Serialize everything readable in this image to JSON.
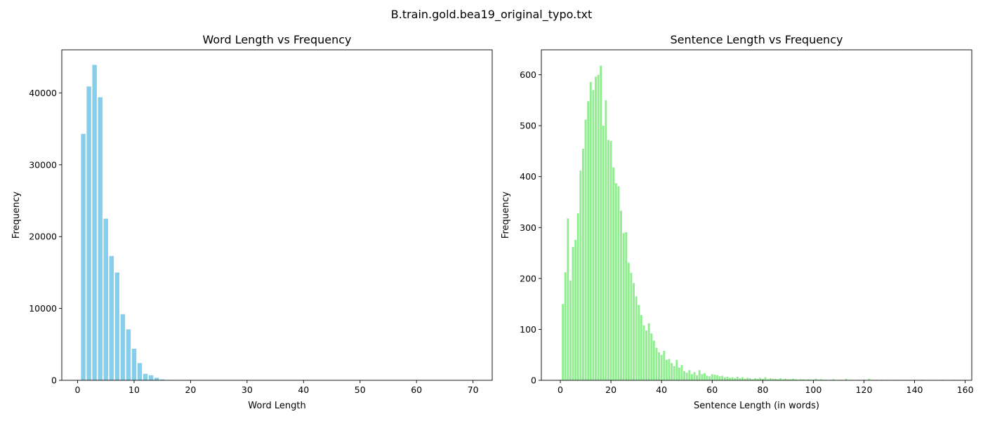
{
  "figure": {
    "suptitle": "B.train.gold.bea19_original_typo.txt"
  },
  "chart_data": [
    {
      "type": "bar",
      "title": "Word Length vs Frequency",
      "xlabel": "Word Length",
      "ylabel": "Frequency",
      "color": "#87ceeb",
      "xlim": [
        -2.8,
        73.4
      ],
      "ylim": [
        0,
        46000
      ],
      "xticks": [
        0,
        10,
        20,
        30,
        40,
        50,
        60,
        70
      ],
      "yticks": [
        0,
        10000,
        20000,
        30000,
        40000
      ],
      "bar_width": 0.8,
      "x": [
        1,
        2,
        3,
        4,
        5,
        6,
        7,
        8,
        9,
        10,
        11,
        12,
        13,
        14,
        15,
        16,
        17,
        18,
        19,
        20,
        21,
        22,
        23,
        24,
        25,
        26,
        27,
        28,
        29,
        30,
        31,
        32,
        33,
        34,
        35,
        36,
        37,
        38,
        39,
        40,
        41,
        42,
        43,
        44,
        45,
        46,
        47,
        48,
        49,
        50,
        51,
        52,
        53,
        54,
        55,
        56,
        57,
        58,
        59,
        60,
        61,
        62,
        63,
        64,
        65,
        66,
        67,
        68,
        69,
        70
      ],
      "values": [
        34300,
        40900,
        43900,
        39400,
        22500,
        17300,
        15000,
        9200,
        7100,
        4400,
        2400,
        900,
        700,
        350,
        120,
        50,
        25,
        10,
        5,
        3,
        2,
        2,
        1,
        1,
        1,
        1,
        1,
        0,
        1,
        0,
        0,
        0,
        0,
        0,
        0,
        0,
        0,
        0,
        0,
        0,
        0,
        0,
        0,
        0,
        0,
        0,
        0,
        0,
        0,
        0,
        0,
        0,
        0,
        0,
        0,
        0,
        0,
        0,
        0,
        0,
        0,
        0,
        0,
        0,
        0,
        0,
        0,
        0,
        0,
        1
      ]
    },
    {
      "type": "bar",
      "title": "Sentence Length vs Frequency",
      "xlabel": "Sentence Length (in words)",
      "ylabel": "Frequency",
      "color": "#90ee90",
      "xlim": [
        -7.5,
        162.6
      ],
      "ylim": [
        0,
        649
      ],
      "xticks": [
        0,
        20,
        40,
        60,
        80,
        100,
        120,
        140,
        160
      ],
      "yticks": [
        0,
        100,
        200,
        300,
        400,
        500,
        600
      ],
      "bar_width": 0.8,
      "x": [
        1,
        2,
        3,
        4,
        5,
        6,
        7,
        8,
        9,
        10,
        11,
        12,
        13,
        14,
        15,
        16,
        17,
        18,
        19,
        20,
        21,
        22,
        23,
        24,
        25,
        26,
        27,
        28,
        29,
        30,
        31,
        32,
        33,
        34,
        35,
        36,
        37,
        38,
        39,
        40,
        41,
        42,
        43,
        44,
        45,
        46,
        47,
        48,
        49,
        50,
        51,
        52,
        53,
        54,
        55,
        56,
        57,
        58,
        59,
        60,
        61,
        62,
        63,
        64,
        65,
        66,
        67,
        68,
        69,
        70,
        71,
        72,
        73,
        74,
        75,
        76,
        77,
        78,
        79,
        80,
        81,
        82,
        83,
        84,
        85,
        86,
        87,
        88,
        89,
        90,
        91,
        92,
        93,
        94,
        95,
        96,
        97,
        98,
        99,
        100,
        101,
        102,
        103,
        104,
        105,
        106,
        107,
        108,
        109,
        110,
        111,
        112,
        113,
        114,
        115,
        116,
        117,
        118,
        119,
        120,
        121,
        122,
        123,
        124,
        125,
        126,
        127,
        128,
        129,
        130,
        131,
        132,
        133,
        134,
        135,
        136,
        137,
        138,
        139,
        140,
        141,
        142,
        143,
        144,
        145,
        146,
        147,
        148,
        149,
        150,
        151,
        152,
        153,
        154,
        155,
        156
      ],
      "values": [
        150,
        212,
        318,
        196,
        262,
        276,
        328,
        412,
        455,
        512,
        548,
        586,
        570,
        596,
        600,
        618,
        500,
        550,
        472,
        470,
        418,
        387,
        381,
        333,
        289,
        291,
        231,
        211,
        191,
        165,
        148,
        128,
        108,
        98,
        112,
        92,
        78,
        64,
        55,
        50,
        58,
        40,
        42,
        34,
        28,
        40,
        25,
        30,
        18,
        15,
        20,
        12,
        16,
        10,
        20,
        12,
        14,
        9,
        8,
        12,
        11,
        10,
        8,
        9,
        6,
        7,
        5,
        6,
        4,
        7,
        4,
        6,
        3,
        5,
        4,
        2,
        4,
        3,
        5,
        3,
        6,
        2,
        4,
        3,
        3,
        2,
        4,
        2,
        3,
        2,
        2,
        3,
        2,
        1,
        2,
        2,
        1,
        2,
        1,
        1,
        3,
        1,
        2,
        1,
        1,
        0,
        1,
        2,
        0,
        0,
        1,
        0,
        3,
        0,
        1,
        0,
        0,
        1,
        0,
        1,
        0,
        3,
        0,
        0,
        1,
        0,
        1,
        0,
        1,
        0,
        0,
        0,
        1,
        0,
        0,
        1,
        0,
        0,
        0,
        1,
        0,
        0,
        1,
        0,
        0,
        0,
        0,
        0,
        0,
        0,
        1,
        0,
        0,
        0,
        1,
        1
      ]
    }
  ]
}
